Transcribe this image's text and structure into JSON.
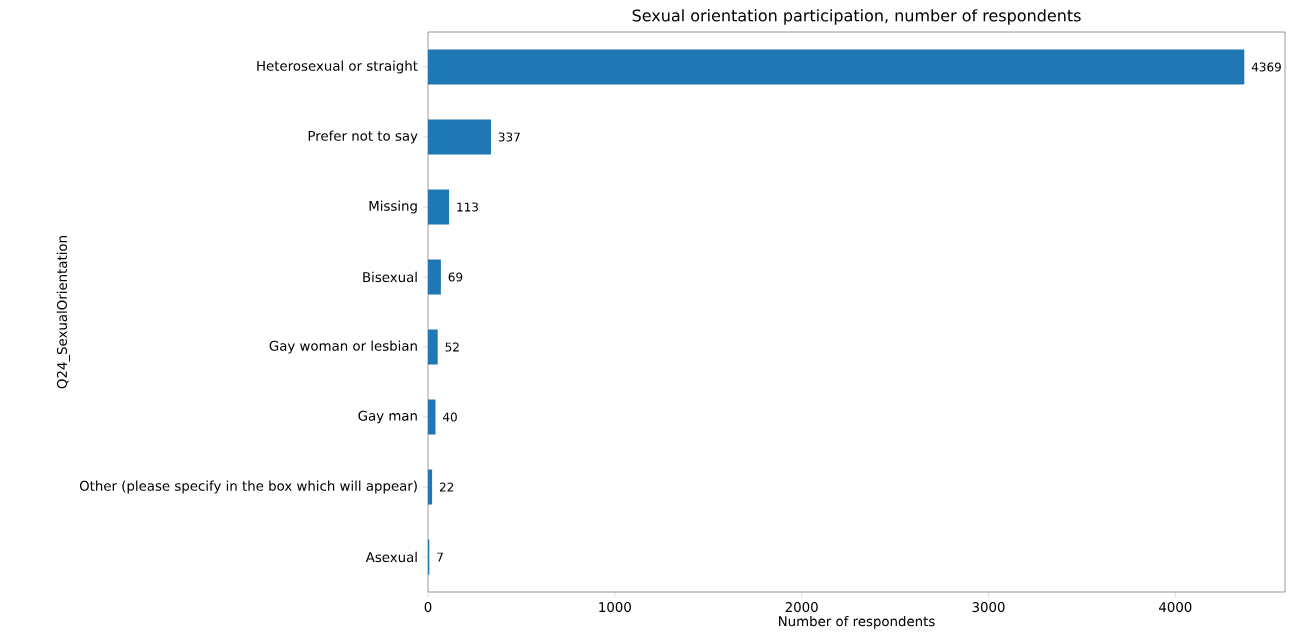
{
  "chart_data": {
    "type": "bar",
    "orientation": "horizontal",
    "title": "Sexual orientation participation, number of respondents",
    "xlabel": "Number of respondents",
    "ylabel": "Q24_SexualOrientation",
    "categories": [
      "Heterosexual or straight",
      "Prefer not to say",
      "Missing",
      "Bisexual",
      "Gay woman or lesbian",
      "Gay man",
      "Other (please specify in the box which will appear)",
      "Asexual"
    ],
    "values": [
      4369,
      337,
      113,
      69,
      52,
      40,
      22,
      7
    ],
    "color": "#1f77b4",
    "data_labels": true,
    "xlim": [
      0,
      4587
    ],
    "xticks": [
      0,
      1000,
      2000,
      3000,
      4000
    ],
    "grid": false
  }
}
